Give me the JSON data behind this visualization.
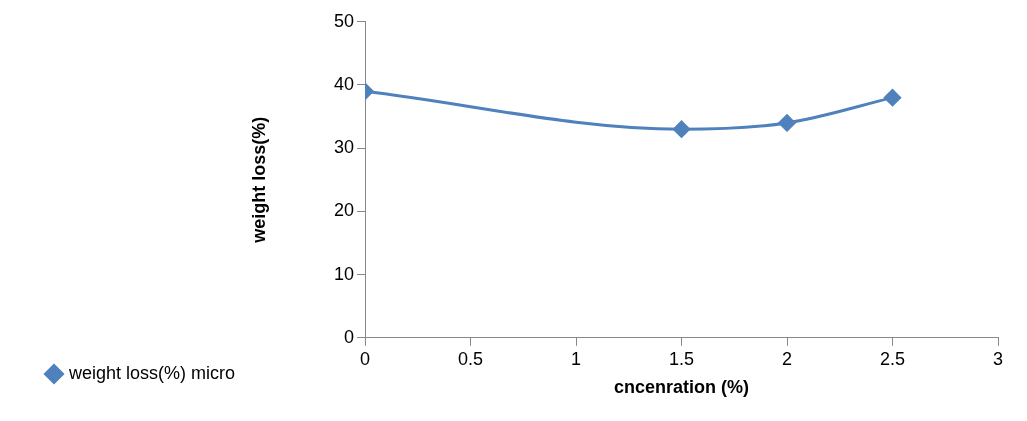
{
  "chart_data": {
    "type": "line",
    "xlabel": "cncenration (%)",
    "ylabel": "weight loss(%)",
    "x": [
      0,
      1.5,
      2,
      2.5
    ],
    "series": [
      {
        "name": "weight loss(%) micro",
        "color": "#4f81bd",
        "values": [
          39,
          33,
          34,
          38
        ]
      }
    ],
    "xlim": [
      0,
      3
    ],
    "xticks": [
      0,
      0.5,
      1,
      1.5,
      2,
      2.5,
      3
    ],
    "ylim": [
      0,
      50
    ],
    "yticks": [
      0,
      10,
      20,
      30,
      40,
      50
    ],
    "grid": false,
    "legend": "left",
    "marker": "diamond",
    "line_style": "solid"
  }
}
